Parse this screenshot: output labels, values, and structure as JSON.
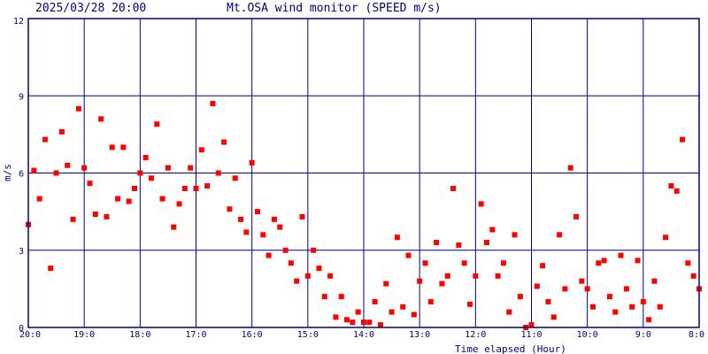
{
  "header": {
    "datetime": "2025/03/28 20:00",
    "title": "Mt.OSA wind monitor (SPEED m/s)"
  },
  "chart_data": {
    "type": "scatter",
    "title": "Mt.OSA wind monitor (SPEED m/s)",
    "xlabel": "Time elapsed (Hour)",
    "ylabel": "m/s",
    "ylim": [
      0,
      12
    ],
    "yticks": [
      "0",
      "3",
      "6",
      "9",
      "12"
    ],
    "ytick_values": [
      0,
      3,
      6,
      9,
      12
    ],
    "xlim_hours": [
      0,
      12
    ],
    "xticks": [
      "20:0",
      "19:0",
      "18:0",
      "17:0",
      "16:0",
      "15:0",
      "14:0",
      "13:0",
      "12:0",
      "11:0",
      "10:0",
      "9:0",
      "8:0"
    ],
    "grid": true,
    "colors": {
      "points": "#ff0000",
      "grid": "#000080",
      "axes": "#000080",
      "text": "#000080"
    },
    "series": [
      {
        "x_hours_elapsed": [
          0.0,
          0.1,
          0.2,
          0.3,
          0.4,
          0.5,
          0.6,
          0.7,
          0.8,
          0.9,
          1.0,
          1.1,
          1.2,
          1.3,
          1.4,
          1.5,
          1.6,
          1.7,
          1.8,
          1.9,
          2.0,
          2.1,
          2.2,
          2.3,
          2.4,
          2.5,
          2.6,
          2.7,
          2.8,
          2.9,
          3.0,
          3.1,
          3.2,
          3.3,
          3.4,
          3.5,
          3.6,
          3.7,
          3.8,
          3.9,
          4.0,
          4.1,
          4.2,
          4.3,
          4.4,
          4.5,
          4.6,
          4.7,
          4.8,
          4.9,
          5.0,
          5.1,
          5.2,
          5.3,
          5.4,
          5.5,
          5.6,
          5.7,
          5.8,
          5.9,
          6.0,
          6.1,
          6.2,
          6.3,
          6.4,
          6.5,
          6.6,
          6.7,
          6.8,
          6.9,
          7.0,
          7.1,
          7.2,
          7.3,
          7.4,
          7.5,
          7.6,
          7.7,
          7.8,
          7.9,
          8.0,
          8.1,
          8.2,
          8.3,
          8.4,
          8.5,
          8.6,
          8.7,
          8.8,
          8.9,
          9.0,
          9.1,
          9.2,
          9.3,
          9.4,
          9.5,
          9.6,
          9.7,
          9.8,
          9.9,
          10.0,
          10.1,
          10.2,
          10.3,
          10.4,
          10.5,
          10.6,
          10.7,
          10.8,
          10.9,
          11.0,
          11.1,
          11.2,
          11.3,
          11.4,
          11.5,
          11.6,
          11.7,
          11.8,
          11.9,
          12.0
        ],
        "y": [
          4.0,
          6.1,
          5.0,
          7.3,
          2.3,
          6.0,
          7.6,
          6.3,
          4.2,
          8.5,
          6.2,
          5.6,
          4.4,
          8.1,
          4.3,
          7.0,
          5.0,
          7.0,
          4.9,
          5.4,
          6.0,
          6.6,
          5.8,
          7.9,
          5.0,
          6.2,
          3.9,
          4.8,
          5.4,
          6.2,
          5.4,
          6.9,
          5.5,
          8.7,
          6.0,
          7.2,
          4.6,
          5.8,
          4.2,
          3.7,
          6.4,
          4.5,
          3.6,
          2.8,
          4.2,
          3.9,
          3.0,
          2.5,
          1.8,
          4.3,
          2.0,
          3.0,
          2.3,
          1.2,
          2.0,
          0.4,
          1.2,
          0.3,
          0.2,
          0.6,
          0.2,
          0.2,
          1.0,
          0.1,
          1.7,
          0.6,
          3.5,
          0.8,
          2.8,
          0.5,
          1.8,
          2.5,
          1.0,
          3.3,
          1.7,
          2.0,
          5.4,
          3.2,
          2.5,
          0.9,
          2.0,
          4.8,
          3.3,
          3.8,
          2.0,
          2.5,
          0.6,
          3.6,
          1.2,
          0.0,
          0.1,
          1.6,
          2.4,
          1.0,
          0.4,
          3.6,
          1.5,
          6.2,
          4.3,
          1.8,
          1.5,
          0.8,
          2.5,
          2.6,
          1.2,
          0.6,
          2.8,
          1.5,
          0.8,
          2.6,
          1.0,
          0.3,
          1.8,
          0.8,
          3.5,
          5.5,
          5.3,
          7.3,
          2.5,
          2.0,
          1.5
        ]
      }
    ]
  }
}
